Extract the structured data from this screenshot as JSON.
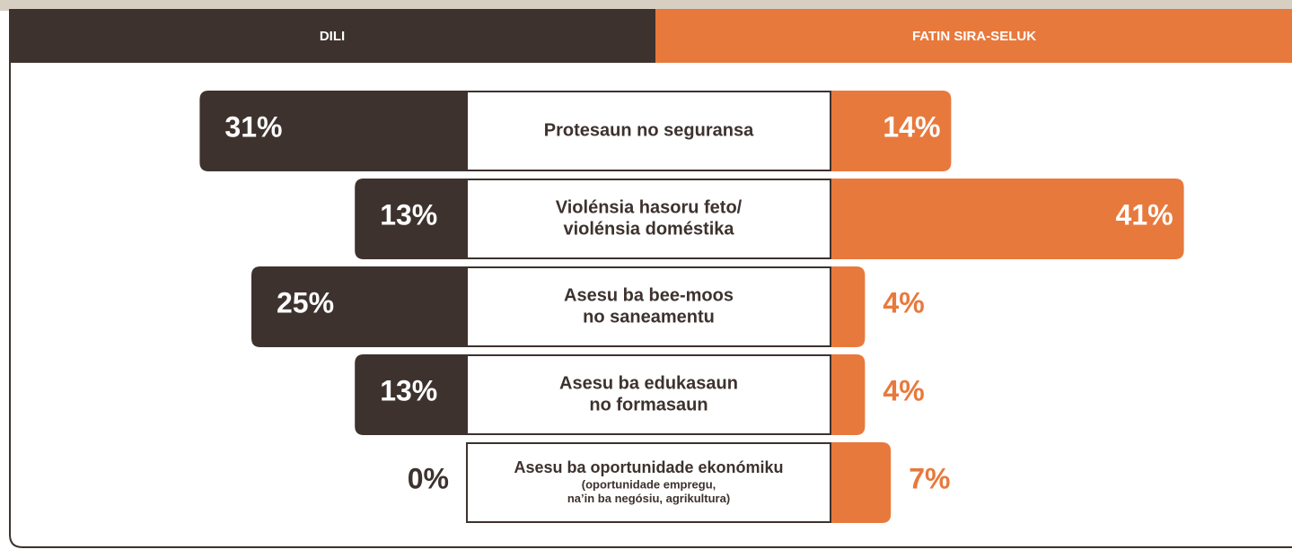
{
  "chart_data": {
    "type": "butterfly",
    "categories": [
      [
        "Protesaun no seguransa"
      ],
      [
        "Violénsia hasoru feto/",
        "violénsia doméstika"
      ],
      [
        "Asesu ba bee-moos",
        "no saneamentu"
      ],
      [
        "Asesu ba edukasaun",
        "no formasaun"
      ],
      [
        "Asesu ba oportunidade ekonómiku",
        "(oportunidade empregu,",
        "na’in ba negósiu, agrikultura)"
      ]
    ],
    "series": [
      {
        "name": "DILI",
        "color": "#3d322e",
        "values": [
          31,
          13,
          25,
          13,
          0
        ],
        "value_labels": [
          "31%",
          "13%",
          "25%",
          "13%",
          "0%"
        ]
      },
      {
        "name": "FATIN SIRA-SELUK",
        "color": "#e8793c",
        "values": [
          14,
          41,
          4,
          4,
          7
        ],
        "value_labels": [
          "14%",
          "41%",
          "4%",
          "4%",
          "7%"
        ]
      }
    ]
  }
}
